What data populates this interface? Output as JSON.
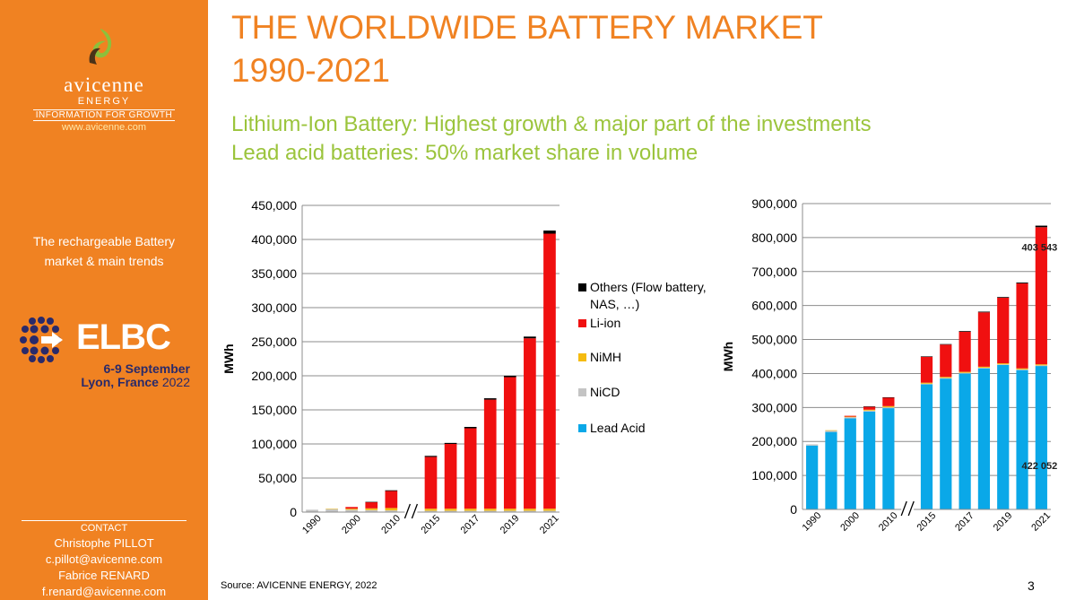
{
  "colors": {
    "accent": "#f08222",
    "green": "#9bc43c",
    "lead": "#0aa8e8",
    "nicd": "#c4c4c4",
    "nimh": "#f5bb10",
    "liion": "#f01010",
    "others": "#000000"
  },
  "sidebar": {
    "brand_name": "avicenne",
    "brand_sub": "ENERGY",
    "brand_tag": "INFORMATION FOR GROWTH",
    "brand_url": "www.avicenne.com",
    "description_lines": [
      "The rechargeable Battery",
      "market & main trends"
    ],
    "event": {
      "name": "ELBC",
      "dates": "6-9 September",
      "place_city": "Lyon, France",
      "place_year": "2022",
      "icon": "globe-dots-icon"
    },
    "contact": {
      "heading": "CONTACT",
      "lines": [
        "Christophe PILLOT",
        "c.pillot@avicenne.com",
        "Fabrice RENARD",
        "f.renard@avicenne.com"
      ]
    }
  },
  "title_lines": [
    "THE WORLDWIDE BATTERY MARKET",
    "1990-2021"
  ],
  "subtitle_lines": [
    "Lithium-Ion Battery: Highest growth & major part of the investments",
    "Lead acid batteries: 50% market share in volume"
  ],
  "source": "Source: AVICENNE ENERGY, 2022",
  "page_number": "3",
  "chart_data": [
    {
      "type": "bar",
      "stacked": true,
      "ylabel": "MWh",
      "ylim": [
        0,
        450000
      ],
      "yticks": [
        0,
        50000,
        100000,
        150000,
        200000,
        250000,
        300000,
        350000,
        400000,
        450000
      ],
      "ytick_labels": [
        "0",
        "50,000",
        "100,000",
        "150,000",
        "200,000",
        "250,000",
        "300,000",
        "350,000",
        "400,000",
        "450,000"
      ],
      "grid": true,
      "axis_break_after": "2010",
      "categories": [
        "1990",
        "1995",
        "2000",
        "2005",
        "2010",
        "2015",
        "2016",
        "2017",
        "2018",
        "2019",
        "2020",
        "2021"
      ],
      "xtick_labels": [
        "1990",
        "",
        "2000",
        "",
        "2010",
        "2015",
        "",
        "2017",
        "",
        "2019",
        "",
        "2021"
      ],
      "series": [
        {
          "name": "Lead Acid",
          "color": "#0aa8e8",
          "values": [
            0,
            0,
            0,
            0,
            0,
            0,
            0,
            0,
            0,
            0,
            0,
            0
          ]
        },
        {
          "name": "NiCD",
          "color": "#c4c4c4",
          "values": [
            3500,
            4500,
            3500,
            3000,
            2500,
            2000,
            2000,
            2000,
            2000,
            2000,
            2000,
            2000
          ]
        },
        {
          "name": "NiMH",
          "color": "#f5bb10",
          "values": [
            0,
            500,
            1500,
            2500,
            3500,
            3000,
            3000,
            3000,
            3000,
            3000,
            3000,
            3000
          ]
        },
        {
          "name": "Li-ion",
          "color": "#f01010",
          "values": [
            0,
            0,
            2500,
            9000,
            25000,
            76000,
            95000,
            118000,
            160000,
            193000,
            250000,
            403543
          ]
        },
        {
          "name": "Others (Flow battery, NAS, …)",
          "color": "#000000",
          "values": [
            0,
            0,
            0,
            500,
            1000,
            1500,
            1500,
            2000,
            2000,
            2000,
            2500,
            4500
          ]
        }
      ],
      "legend": "right"
    },
    {
      "type": "bar",
      "stacked": true,
      "ylabel": "MWh",
      "ylim": [
        0,
        900000
      ],
      "yticks": [
        0,
        100000,
        200000,
        300000,
        400000,
        500000,
        600000,
        700000,
        800000,
        900000
      ],
      "ytick_labels": [
        "0",
        "100,000",
        "200,000",
        "300,000",
        "400,000",
        "500,000",
        "600,000",
        "700,000",
        "800,000",
        "900,000"
      ],
      "grid": true,
      "axis_break_after": "2010",
      "categories": [
        "1990",
        "1995",
        "2000",
        "2005",
        "2010",
        "2015",
        "2016",
        "2017",
        "2018",
        "2019",
        "2020",
        "2021"
      ],
      "xtick_labels": [
        "1990",
        "",
        "2000",
        "",
        "2010",
        "2015",
        "",
        "2017",
        "",
        "2019",
        "",
        "2021"
      ],
      "series": [
        {
          "name": "Lead Acid",
          "color": "#0aa8e8",
          "values": [
            188000,
            228000,
            268000,
            288000,
            298000,
            368000,
            385000,
            400000,
            415000,
            425000,
            410000,
            422052
          ]
        },
        {
          "name": "NiCD",
          "color": "#c4c4c4",
          "values": [
            3500,
            4500,
            3500,
            3000,
            2500,
            2000,
            2000,
            2000,
            2000,
            2000,
            2000,
            2000
          ]
        },
        {
          "name": "NiMH",
          "color": "#f5bb10",
          "values": [
            0,
            500,
            1500,
            2500,
            3500,
            3000,
            3000,
            3000,
            3000,
            3000,
            3000,
            3000
          ]
        },
        {
          "name": "Li-ion",
          "color": "#f01010",
          "values": [
            0,
            0,
            2500,
            9000,
            25000,
            76000,
            95000,
            118000,
            160000,
            193000,
            250000,
            403543
          ]
        },
        {
          "name": "Others (Flow battery, NAS, …)",
          "color": "#000000",
          "values": [
            0,
            0,
            0,
            500,
            1000,
            1500,
            1500,
            2000,
            2000,
            2000,
            2500,
            4500
          ]
        }
      ],
      "data_labels": [
        {
          "text": "403 543",
          "category": "2021",
          "series": "Li-ion"
        },
        {
          "text": "422 052",
          "category": "2021",
          "series": "Lead Acid"
        }
      ]
    }
  ]
}
